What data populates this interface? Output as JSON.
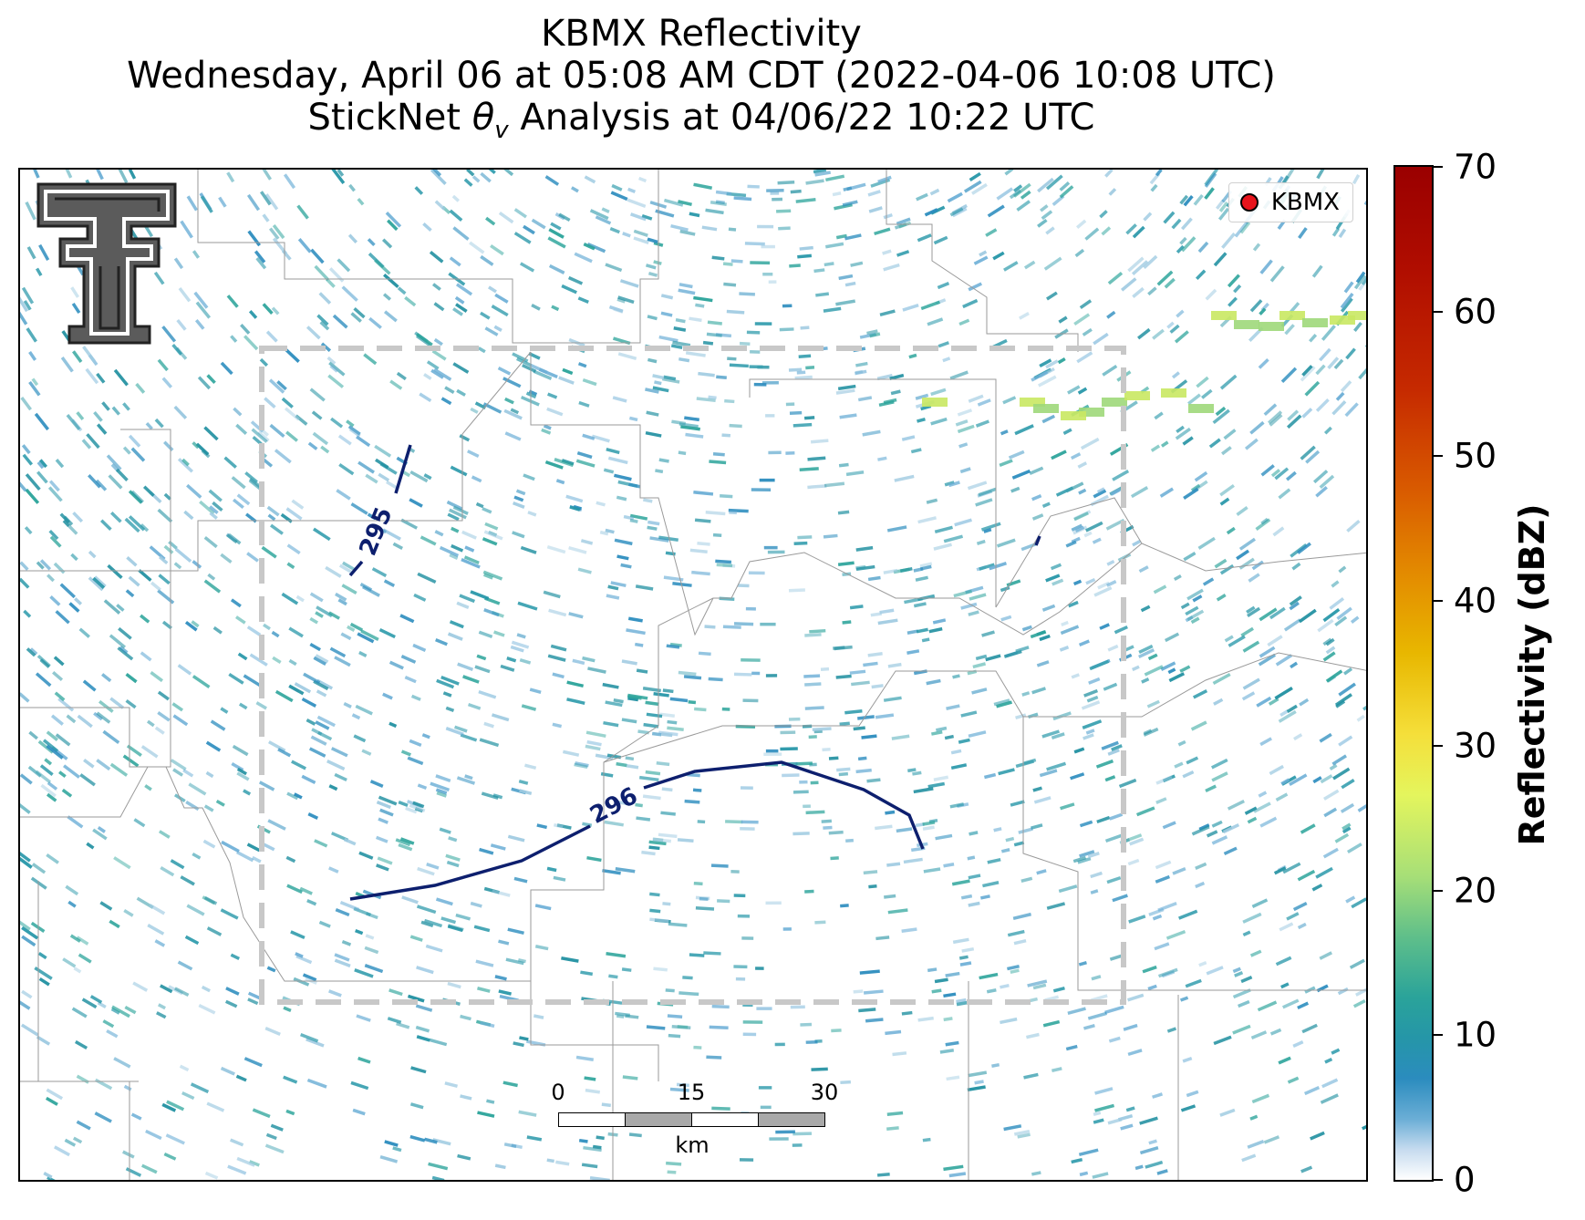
{
  "title": {
    "line1": "KBMX Reflectivity",
    "line2": "Wednesday, April 06 at 05:08 AM CDT (2022-04-06 10:08 UTC)",
    "line3_prefix": "StickNet ",
    "line3_var": "θ",
    "line3_sub": "v",
    "line3_suffix": " Analysis at 04/06/22 10:22 UTC"
  },
  "legend": {
    "label": "KBMX"
  },
  "logo": {
    "icon": "texas-tech-double-t-logo"
  },
  "contours": [
    {
      "label": "296",
      "color": "#0d1f6e"
    },
    {
      "label": "295",
      "color": "#0d1f6e"
    }
  ],
  "scalebar": {
    "ticks": [
      "0",
      "15",
      "30"
    ],
    "unit": "km"
  },
  "colorbar": {
    "title": "Reflectivity (dBZ)",
    "min": 0,
    "max": 70,
    "ticks": [
      "0",
      "10",
      "20",
      "30",
      "40",
      "50",
      "60",
      "70"
    ]
  },
  "colors": {
    "contour": "#0d1f6e",
    "analysis_box": "#c8c8c8",
    "radar_site": "#e8141c"
  }
}
